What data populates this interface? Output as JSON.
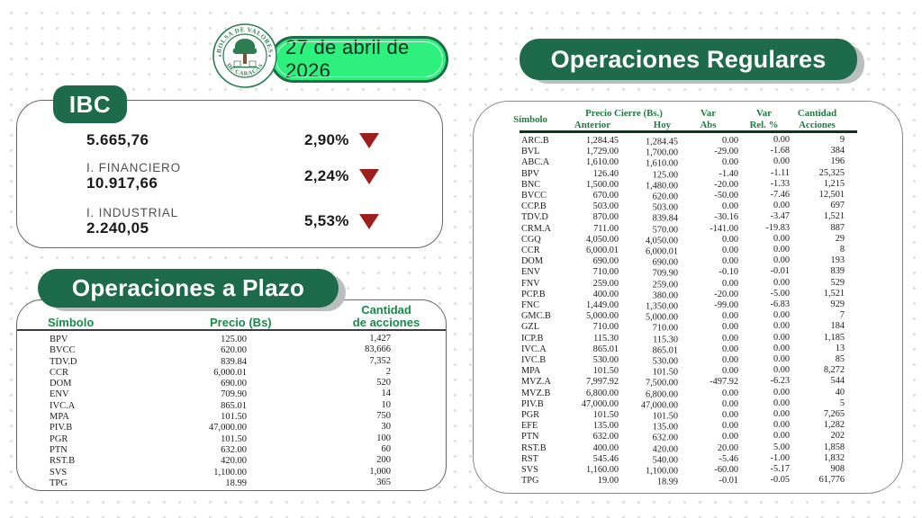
{
  "header": {
    "date": "27 de abril de 2026",
    "logo_top": "BOLSA DE VALORES",
    "logo_bottom": "DE CARACAS"
  },
  "colors": {
    "dark_green": "#1e6b4b",
    "bright_green": "#2ef07c",
    "maroon_arrow": "#9e1d1d",
    "table_header_green": "#1f7a3e"
  },
  "ibc": {
    "title": "IBC",
    "rows": [
      {
        "label": "",
        "value": "5.665,76",
        "pct": "2,90%",
        "direction": "down"
      },
      {
        "label": "I. FINANCIERO",
        "value": "10.917,66",
        "pct": "2,24%",
        "direction": "down"
      },
      {
        "label": "I. INDUSTRIAL",
        "value": "2.240,05",
        "pct": "5,53%",
        "direction": "down"
      }
    ]
  },
  "plazo": {
    "title": "Operaciones a Plazo",
    "headers": {
      "symbol": "Símbolo",
      "price": "Precio (Bs)",
      "qty_line1": "Cantidad",
      "qty_line2": "de acciones"
    },
    "rows": [
      [
        "BPV",
        "125.00",
        "1,427"
      ],
      [
        "BVCC",
        "620.00",
        "83,666"
      ],
      [
        "TDV.D",
        "839.84",
        "7,352"
      ],
      [
        "CCR",
        "6,000.01",
        "2"
      ],
      [
        "DOM",
        "690.00",
        "520"
      ],
      [
        "ENV",
        "709.90",
        "14"
      ],
      [
        "IVC.A",
        "865.01",
        "10"
      ],
      [
        "MPA",
        "101.50",
        "750"
      ],
      [
        "PIV.B",
        "47,000.00",
        "30"
      ],
      [
        "PGR",
        "101.50",
        "100"
      ],
      [
        "PTN",
        "632.00",
        "60"
      ],
      [
        "RST.B",
        "420.00",
        "200"
      ],
      [
        "SVS",
        "1,100.00",
        "1,000"
      ],
      [
        "TPG",
        "18.99",
        "365"
      ]
    ]
  },
  "regulares": {
    "title": "Operaciones Regulares",
    "headers": {
      "symbol": "Símbolo",
      "price_group": "Precio Cierre (Bs.)",
      "anterior": "Anterior",
      "hoy": "Hoy",
      "var_abs_line1": "Var",
      "var_abs_line2": "Abs",
      "var_rel_line1": "Var",
      "var_rel_line2": "Rel. %",
      "qty_line1": "Cantidad",
      "qty_line2": "Acciones"
    },
    "rows": [
      [
        "ARC.B",
        "1,284.45",
        "1,284.45",
        "0.00",
        "0.00",
        "9"
      ],
      [
        "BVL",
        "1,729.00",
        "1,700.00",
        "-29.00",
        "-1.68",
        "384"
      ],
      [
        "ABC.A",
        "1,610.00",
        "1,610.00",
        "0.00",
        "0.00",
        "196"
      ],
      [
        "BPV",
        "126.40",
        "125.00",
        "-1.40",
        "-1.11",
        "25,325"
      ],
      [
        "BNC",
        "1,500.00",
        "1,480.00",
        "-20.00",
        "-1.33",
        "1,215"
      ],
      [
        "BVCC",
        "670.00",
        "620.00",
        "-50.00",
        "-7.46",
        "12,501"
      ],
      [
        "CCP.B",
        "503.00",
        "503.00",
        "0.00",
        "0.00",
        "697"
      ],
      [
        "TDV.D",
        "870.00",
        "839.84",
        "-30.16",
        "-3.47",
        "1,521"
      ],
      [
        "CRM.A",
        "711.00",
        "570.00",
        "-141.00",
        "-19.83",
        "887"
      ],
      [
        "CGQ",
        "4,050.00",
        "4,050.00",
        "0.00",
        "0.00",
        "29"
      ],
      [
        "CCR",
        "6,000.01",
        "6,000.01",
        "0.00",
        "0.00",
        "8"
      ],
      [
        "DOM",
        "690.00",
        "690.00",
        "0.00",
        "0.00",
        "193"
      ],
      [
        "ENV",
        "710.00",
        "709.90",
        "-0.10",
        "-0.01",
        "839"
      ],
      [
        "FNV",
        "259.00",
        "259.00",
        "0.00",
        "0.00",
        "529"
      ],
      [
        "PCP.B",
        "400.00",
        "380.00",
        "-20.00",
        "-5.00",
        "1,521"
      ],
      [
        "FNC",
        "1,449.00",
        "1,350.00",
        "-99.00",
        "-6.83",
        "929"
      ],
      [
        "GMC.B",
        "5,000.00",
        "5,000.00",
        "0.00",
        "0.00",
        "7"
      ],
      [
        "GZL",
        "710.00",
        "710.00",
        "0.00",
        "0.00",
        "184"
      ],
      [
        "ICP.B",
        "115.30",
        "115.30",
        "0.00",
        "0.00",
        "1,185"
      ],
      [
        "IVC.A",
        "865.01",
        "865.01",
        "0.00",
        "0.00",
        "13"
      ],
      [
        "IVC.B",
        "530.00",
        "530.00",
        "0.00",
        "0.00",
        "85"
      ],
      [
        "MPA",
        "101.50",
        "101.50",
        "0.00",
        "0.00",
        "8,272"
      ],
      [
        "MVZ.A",
        "7,997.92",
        "7,500.00",
        "-497.92",
        "-6.23",
        "544"
      ],
      [
        "MVZ.B",
        "6,800.00",
        "6,800.00",
        "0.00",
        "0.00",
        "40"
      ],
      [
        "PIV.B",
        "47,000.00",
        "47,000.00",
        "0.00",
        "0.00",
        "5"
      ],
      [
        "PGR",
        "101.50",
        "101.50",
        "0.00",
        "0.00",
        "7,265"
      ],
      [
        "EFE",
        "135.00",
        "135.00",
        "0.00",
        "0.00",
        "1,282"
      ],
      [
        "PTN",
        "632.00",
        "632.00",
        "0.00",
        "0.00",
        "202"
      ],
      [
        "RST.B",
        "400.00",
        "420.00",
        "20.00",
        "5.00",
        "1,858"
      ],
      [
        "RST",
        "545.46",
        "540.00",
        "-5.46",
        "-1.00",
        "1,832"
      ],
      [
        "SVS",
        "1,160.00",
        "1,100.00",
        "-60.00",
        "-5.17",
        "908"
      ],
      [
        "TPG",
        "19.00",
        "18.99",
        "-0.01",
        "-0.05",
        "61,776"
      ]
    ]
  }
}
